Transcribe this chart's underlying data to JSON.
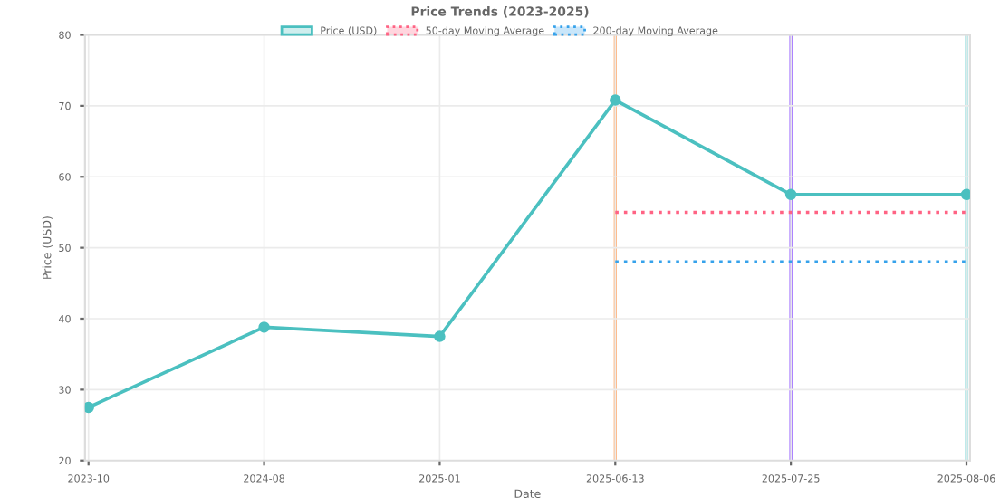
{
  "chart_data": {
    "type": "line",
    "title": "Price Trends (2023-2025)",
    "xlabel": "Date",
    "ylabel": "Price (USD)",
    "categories": [
      "2023-10",
      "2024-08",
      "2025-01",
      "2025-06-13",
      "2025-07-25",
      "2025-08-06"
    ],
    "series": [
      {
        "name": "Price (USD)",
        "color": "#4bc0c0",
        "values": [
          27.5,
          38.8,
          37.5,
          70.8,
          57.5,
          57.5
        ],
        "marker": "circle",
        "line_style": "solid"
      },
      {
        "name": "50-day Moving Average",
        "color": "#ff6384",
        "values": [
          null,
          null,
          null,
          55,
          55,
          55
        ],
        "marker": "none",
        "line_style": "dotted"
      },
      {
        "name": "200-day Moving Average",
        "color": "#36a2eb",
        "values": [
          null,
          null,
          null,
          48,
          48,
          48
        ],
        "marker": "none",
        "line_style": "dotted"
      }
    ],
    "ylim": [
      20,
      80
    ],
    "yticks": [
      20,
      30,
      40,
      50,
      60,
      70,
      80
    ],
    "grid": true,
    "legend": "top",
    "ref_lines": [
      {
        "axis": "x",
        "value": "2025-06-13",
        "color": "#ffb27a"
      },
      {
        "axis": "x",
        "value": "2025-07-25",
        "color": "#9966ff"
      },
      {
        "axis": "x",
        "value": "2025-08-06",
        "color": "#9fdfdf"
      }
    ]
  }
}
